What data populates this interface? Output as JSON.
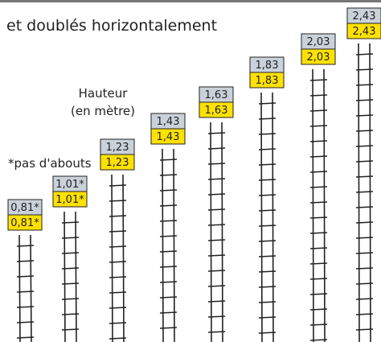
{
  "header": {
    "title": "et doublés horizontalement"
  },
  "notes": {
    "height": "Hauteur",
    "unit": "(en mètre)",
    "footnote": "*pas d'abouts"
  },
  "ladders": [
    {
      "top_label": "0,81*",
      "bottom_label": "0,81*"
    },
    {
      "top_label": "1,01*",
      "bottom_label": "1,01*"
    },
    {
      "top_label": "1,23",
      "bottom_label": "1,23"
    },
    {
      "top_label": "1,43",
      "bottom_label": "1,43"
    },
    {
      "top_label": "1,63",
      "bottom_label": "1,63"
    },
    {
      "top_label": "1,83",
      "bottom_label": "1,83"
    },
    {
      "top_label": "2,03",
      "bottom_label": "2,03"
    },
    {
      "top_label": "2,43",
      "bottom_label": "2,43"
    }
  ]
}
